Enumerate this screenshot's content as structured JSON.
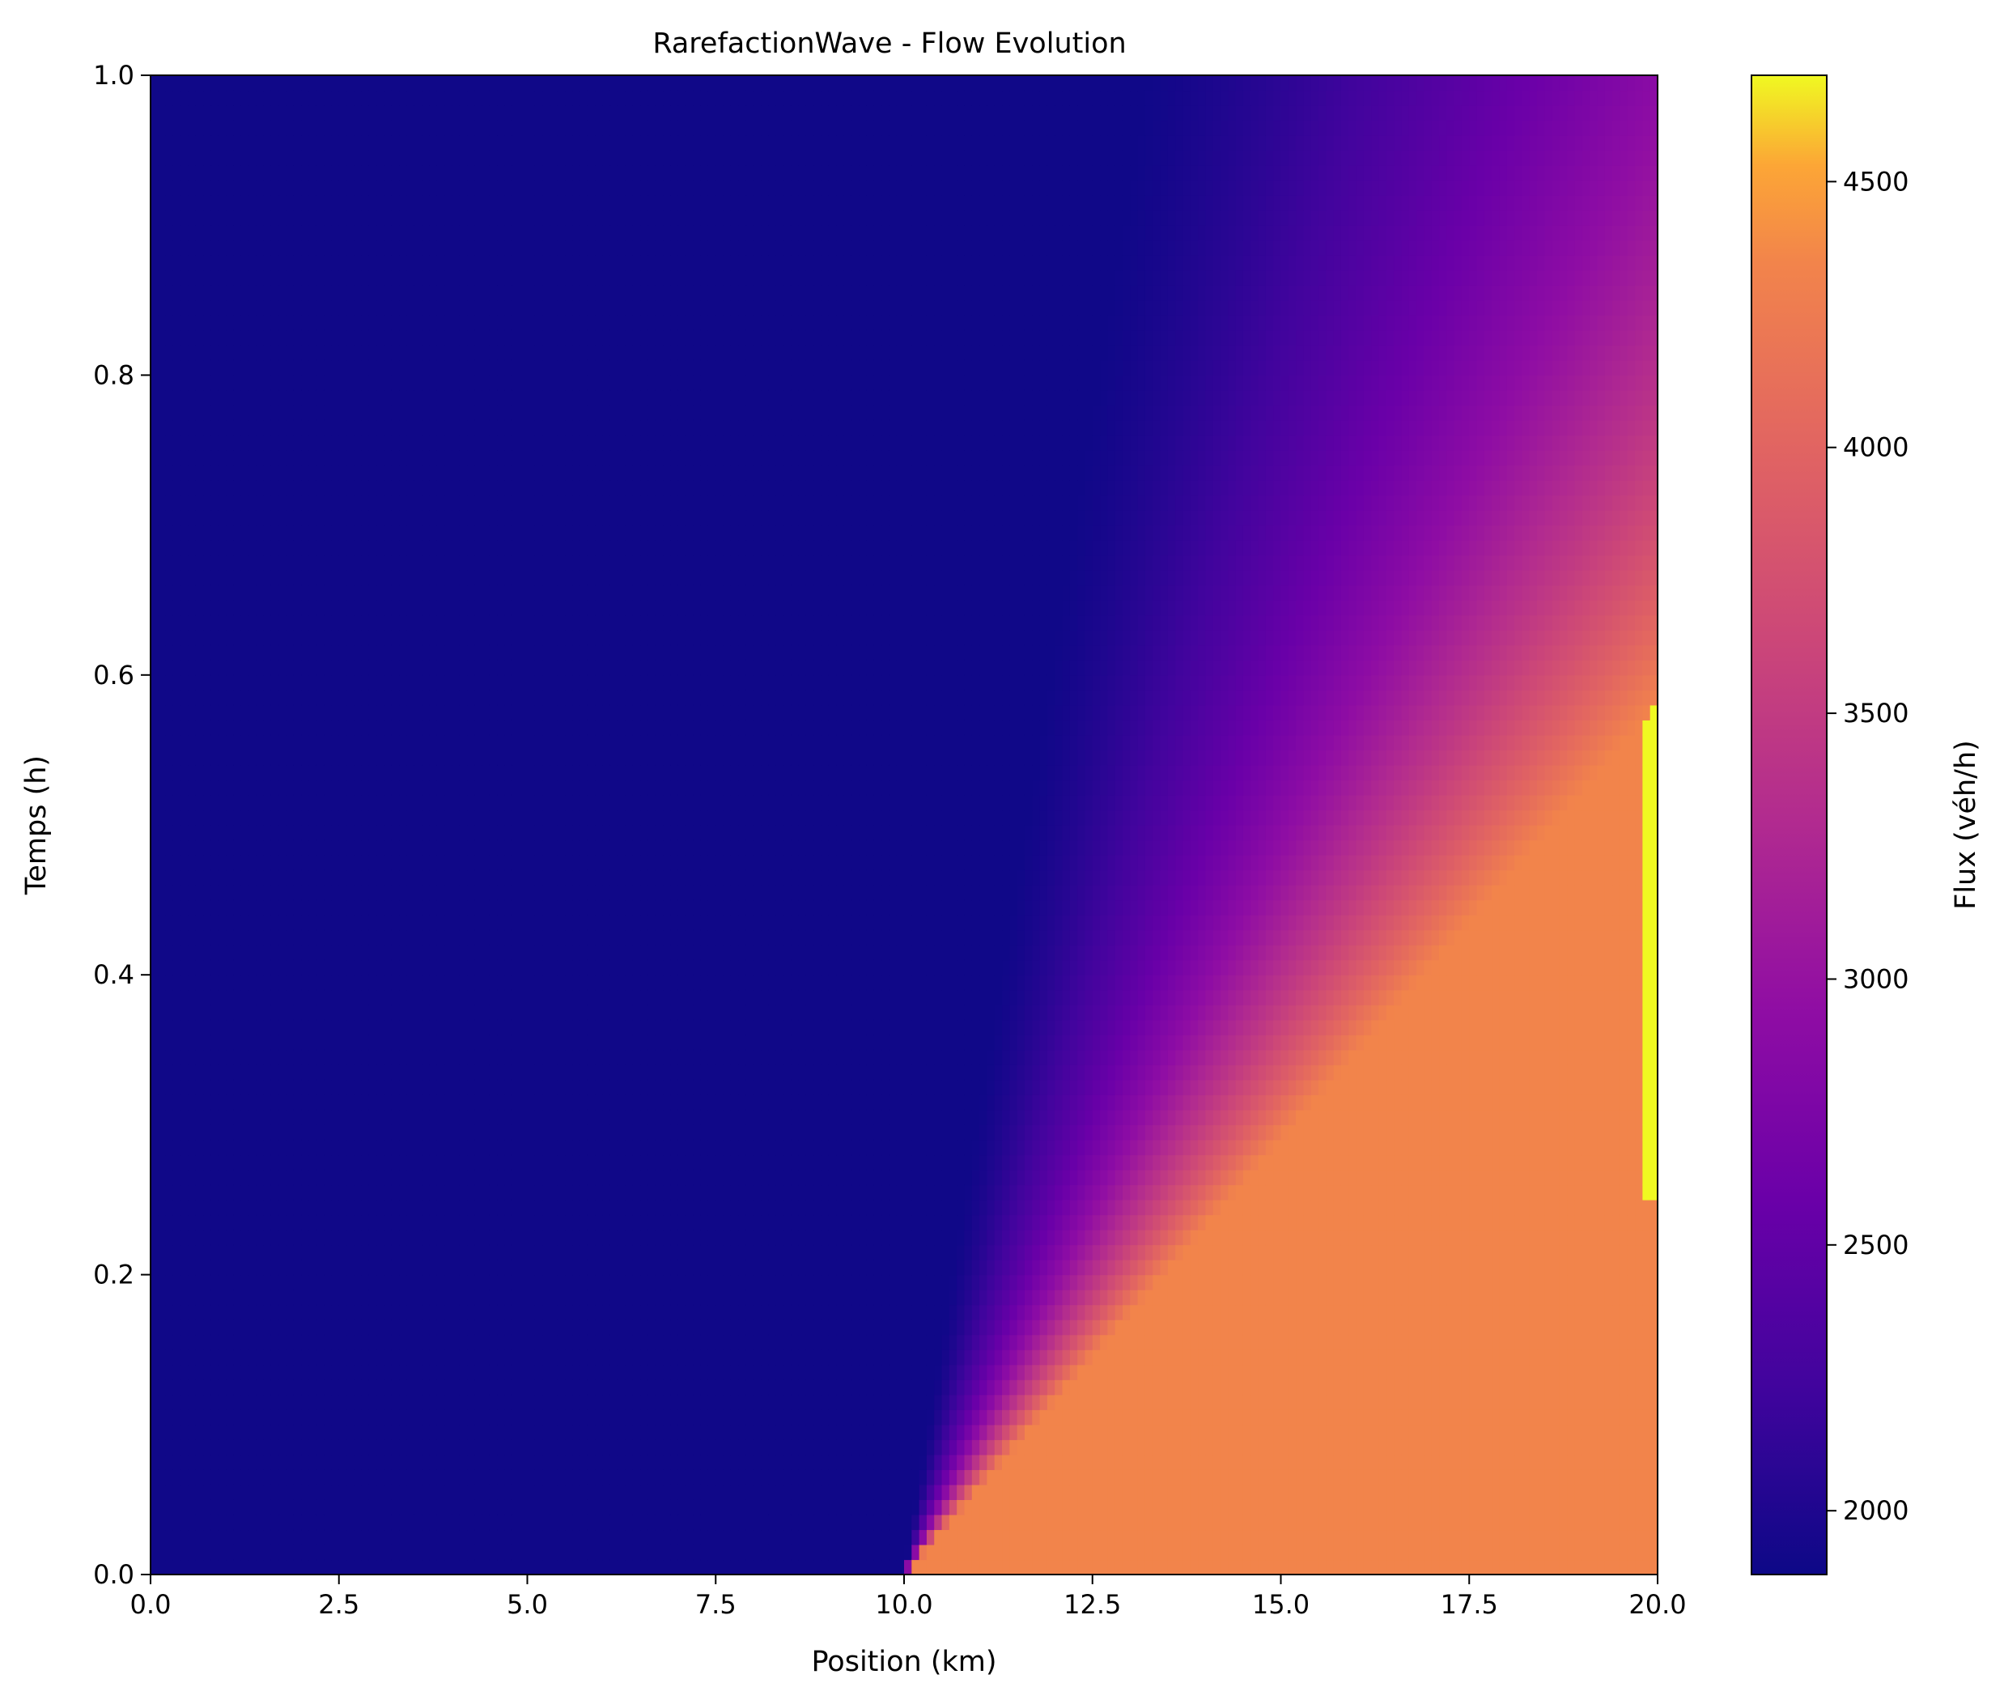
{
  "chart_data": {
    "type": "heatmap",
    "title": "RarefactionWave - Flow Evolution",
    "xlabel": "Position (km)",
    "ylabel": "Temps (h)",
    "xlim": [
      0,
      20
    ],
    "ylim": [
      0,
      1
    ],
    "x_ticks": [
      "0.0",
      "2.5",
      "5.0",
      "7.5",
      "10.0",
      "12.5",
      "15.0",
      "17.5",
      "20.0"
    ],
    "y_ticks": [
      "0.0",
      "0.2",
      "0.4",
      "0.6",
      "0.8",
      "1.0"
    ],
    "colormap": "plasma",
    "colorbar": {
      "label": "Flux (véh/h)",
      "min": 1880,
      "max": 4700,
      "ticks": [
        "2000",
        "2500",
        "3000",
        "3500",
        "4000",
        "4500"
      ]
    },
    "flow_levels": {
      "upstream": 1900,
      "downstream": 4350,
      "peak": 4700
    },
    "features": {
      "discontinuity_position": 10,
      "fan_front_position": 20,
      "fan_front_time": 0.58
    }
  }
}
